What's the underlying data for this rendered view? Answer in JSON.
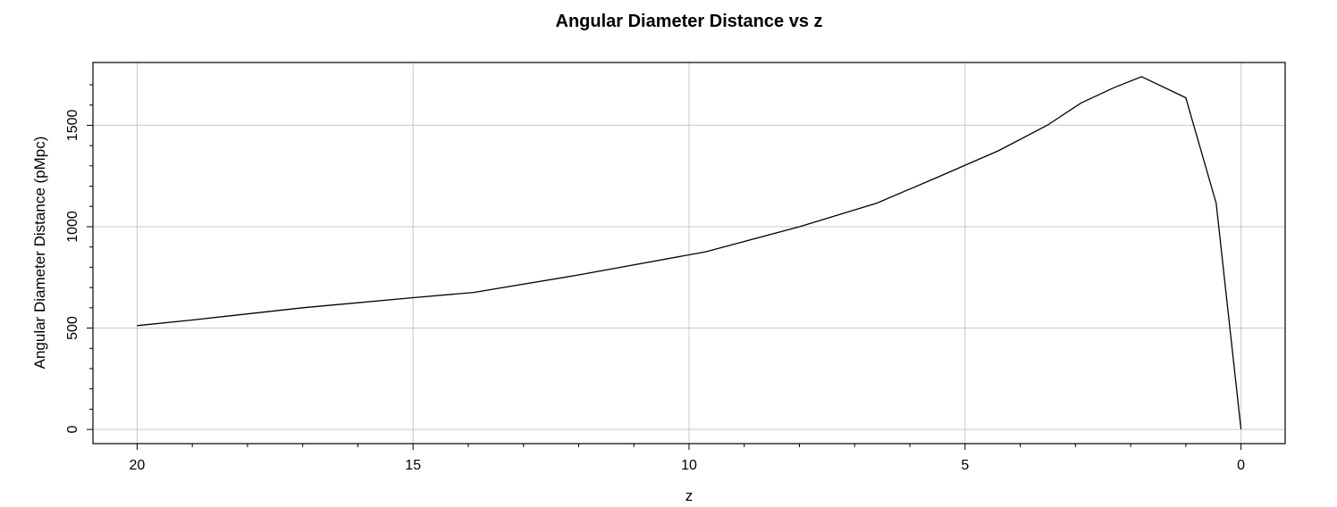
{
  "chart_data": {
    "type": "line",
    "title": "Angular Diameter Distance vs z",
    "xlabel": "z",
    "ylabel": "Angular Diameter Distance (pMpc)",
    "xlim": [
      20.8,
      -0.8
    ],
    "ylim": [
      -70,
      1810
    ],
    "x_reversed": true,
    "grid": true,
    "legend": "none",
    "x_major_ticks": [
      20,
      15,
      10,
      5,
      0
    ],
    "x_minor_ticks": [
      19,
      18,
      17,
      16,
      14,
      13,
      12,
      11,
      9,
      8,
      7,
      6,
      4,
      3,
      2,
      1
    ],
    "y_major_ticks": [
      0,
      500,
      1000,
      1500
    ],
    "y_minor_ticks": [
      100,
      200,
      300,
      400,
      600,
      700,
      800,
      900,
      1100,
      1200,
      1300,
      1400,
      1600,
      1700
    ],
    "series": [
      {
        "x": [
          20,
          19,
          17,
          15,
          13.9,
          12,
          9.7,
          8,
          6.6,
          5.5,
          4.4,
          3.5,
          2.9,
          2.3,
          1.8,
          1.0,
          0.45,
          0.0
        ],
        "y": [
          512,
          540,
          600,
          650,
          676,
          762,
          876,
          1000,
          1116,
          1244,
          1374,
          1502,
          1610,
          1686,
          1740,
          1636,
          1116,
          0
        ]
      }
    ],
    "line_color": "#000000",
    "grid_color": "#c8c8c8"
  }
}
